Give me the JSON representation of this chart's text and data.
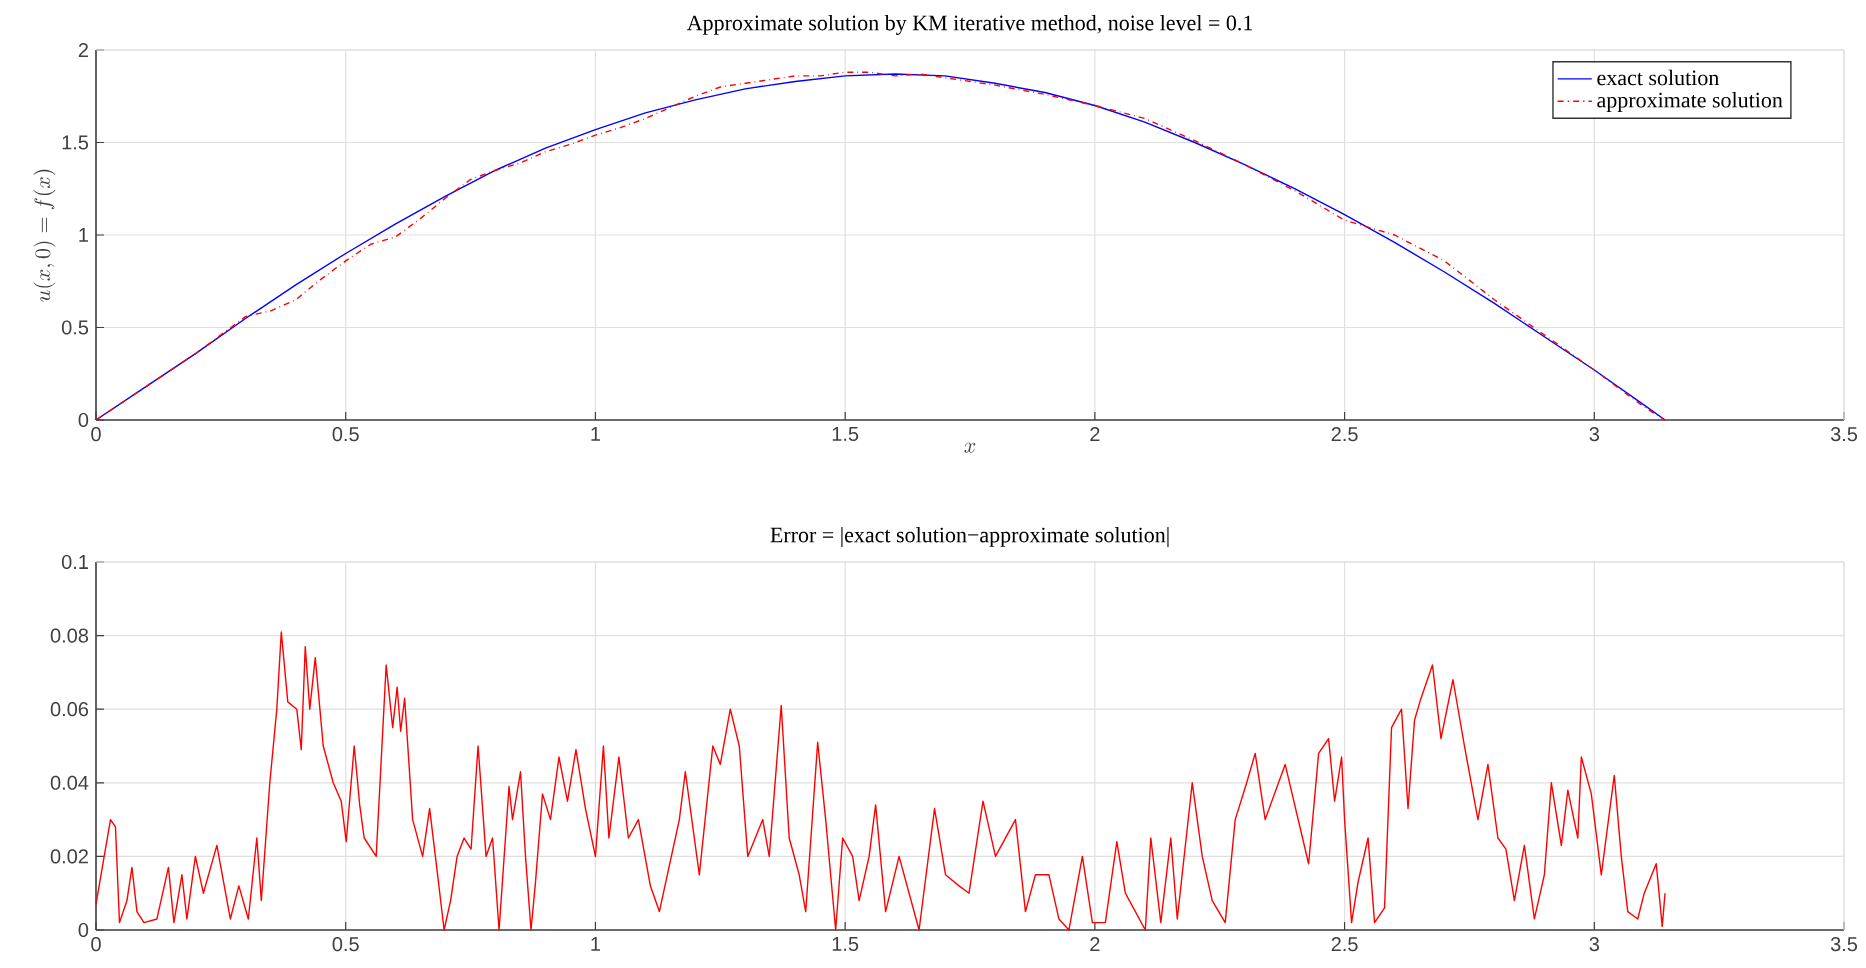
{
  "chart_data": [
    {
      "type": "line",
      "title": "Approximate solution by KM iterative method, noise level = 0.1",
      "xlabel": "x",
      "ylabel": "u(x,0) = f(x)",
      "series": [
        {
          "name": "exact solution",
          "color": "#0000ff",
          "line_style": "solid",
          "x": [
            0,
            0.1,
            0.2,
            0.3,
            0.4,
            0.5,
            0.6,
            0.7,
            0.8,
            0.9,
            1.0,
            1.1,
            1.2,
            1.3,
            1.4,
            1.5,
            1.6,
            1.7,
            1.8,
            1.9,
            2.0,
            2.1,
            2.2,
            2.3,
            2.4,
            2.5,
            2.6,
            2.7,
            2.8,
            2.9,
            3.0,
            3.1,
            3.1416
          ],
          "values": [
            0,
            0.18,
            0.36,
            0.55,
            0.73,
            0.9,
            1.06,
            1.21,
            1.35,
            1.47,
            1.57,
            1.66,
            1.73,
            1.79,
            1.83,
            1.86,
            1.87,
            1.86,
            1.82,
            1.77,
            1.7,
            1.61,
            1.5,
            1.38,
            1.25,
            1.11,
            0.96,
            0.8,
            0.63,
            0.45,
            0.27,
            0.08,
            0
          ]
        },
        {
          "name": "approximate solution",
          "color": "#ff0000",
          "line_style": "dashdot",
          "x": [
            0,
            0.1,
            0.2,
            0.3,
            0.35,
            0.4,
            0.45,
            0.5,
            0.55,
            0.6,
            0.65,
            0.7,
            0.75,
            0.8,
            0.85,
            0.9,
            0.95,
            1.0,
            1.05,
            1.1,
            1.15,
            1.2,
            1.25,
            1.3,
            1.35,
            1.4,
            1.45,
            1.5,
            1.55,
            1.6,
            1.65,
            1.7,
            1.8,
            1.9,
            2.0,
            2.1,
            2.2,
            2.3,
            2.4,
            2.5,
            2.6,
            2.7,
            2.8,
            2.9,
            3.0,
            3.1,
            3.1416
          ],
          "values": [
            0,
            0.18,
            0.36,
            0.56,
            0.59,
            0.65,
            0.76,
            0.86,
            0.95,
            0.99,
            1.09,
            1.2,
            1.3,
            1.35,
            1.39,
            1.45,
            1.49,
            1.54,
            1.58,
            1.63,
            1.69,
            1.75,
            1.8,
            1.82,
            1.84,
            1.86,
            1.86,
            1.88,
            1.88,
            1.86,
            1.87,
            1.85,
            1.81,
            1.76,
            1.7,
            1.63,
            1.51,
            1.38,
            1.24,
            1.08,
            1.0,
            0.86,
            0.65,
            0.46,
            0.27,
            0.07,
            0
          ]
        }
      ],
      "xlim": [
        0,
        3.5
      ],
      "ylim": [
        0,
        2
      ],
      "xticks": [
        0,
        0.5,
        1,
        1.5,
        2,
        2.5,
        3,
        3.5
      ],
      "yticks": [
        0,
        0.5,
        1,
        1.5,
        2
      ],
      "grid": true,
      "legend": "top right"
    },
    {
      "type": "line",
      "title": "Error = |exact solution−approximate solution|",
      "series": [
        {
          "color": "#ff0000",
          "line_style": "solid",
          "x": [
            0,
            0.029,
            0.039,
            0.047,
            0.062,
            0.072,
            0.082,
            0.096,
            0.122,
            0.145,
            0.156,
            0.172,
            0.182,
            0.199,
            0.215,
            0.242,
            0.269,
            0.286,
            0.305,
            0.322,
            0.331,
            0.348,
            0.362,
            0.371,
            0.384,
            0.402,
            0.411,
            0.419,
            0.428,
            0.439,
            0.455,
            0.475,
            0.491,
            0.501,
            0.517,
            0.528,
            0.537,
            0.561,
            0.581,
            0.594,
            0.603,
            0.61,
            0.618,
            0.634,
            0.654,
            0.668,
            0.684,
            0.697,
            0.71,
            0.723,
            0.737,
            0.751,
            0.765,
            0.781,
            0.794,
            0.807,
            0.827,
            0.834,
            0.85,
            0.86,
            0.871,
            0.88,
            0.894,
            0.91,
            0.927,
            0.944,
            0.961,
            0.98,
            1.0,
            1.016,
            1.027,
            1.047,
            1.066,
            1.086,
            1.11,
            1.128,
            1.168,
            1.18,
            1.208,
            1.235,
            1.25,
            1.27,
            1.288,
            1.305,
            1.335,
            1.348,
            1.372,
            1.388,
            1.408,
            1.421,
            1.445,
            1.461,
            1.481,
            1.495,
            1.515,
            1.528,
            1.548,
            1.561,
            1.581,
            1.608,
            1.628,
            1.648,
            1.679,
            1.701,
            1.728,
            1.748,
            1.776,
            1.801,
            1.841,
            1.861,
            1.881,
            1.908,
            1.928,
            1.948,
            1.975,
            1.995,
            2.021,
            2.044,
            2.061,
            2.101,
            2.112,
            2.132,
            2.152,
            2.165,
            2.195,
            2.215,
            2.235,
            2.261,
            2.281,
            2.304,
            2.321,
            2.341,
            2.381,
            2.428,
            2.448,
            2.468,
            2.48,
            2.494,
            2.5,
            2.514,
            2.527,
            2.547,
            2.56,
            2.58,
            2.594,
            2.614,
            2.627,
            2.64,
            2.653,
            2.676,
            2.693,
            2.717,
            2.74,
            2.767,
            2.787,
            2.807,
            2.823,
            2.84,
            2.86,
            2.88,
            2.9,
            2.914,
            2.934,
            2.947,
            2.967,
            2.974,
            2.994,
            3.014,
            3.04,
            3.054,
            3.067,
            3.087,
            3.1,
            3.124,
            3.136,
            3.1416
          ],
          "values": [
            0.007,
            0.03,
            0.028,
            0.002,
            0.008,
            0.017,
            0.005,
            0.002,
            0.003,
            0.017,
            0.002,
            0.015,
            0.003,
            0.02,
            0.01,
            0.023,
            0.003,
            0.012,
            0.003,
            0.025,
            0.008,
            0.04,
            0.06,
            0.081,
            0.062,
            0.06,
            0.049,
            0.077,
            0.06,
            0.074,
            0.05,
            0.04,
            0.035,
            0.024,
            0.05,
            0.034,
            0.025,
            0.02,
            0.072,
            0.055,
            0.066,
            0.054,
            0.063,
            0.03,
            0.02,
            0.033,
            0.015,
            0,
            0.008,
            0.02,
            0.025,
            0.022,
            0.05,
            0.02,
            0.025,
            0,
            0.039,
            0.03,
            0.043,
            0.02,
            0,
            0.013,
            0.037,
            0.03,
            0.047,
            0.035,
            0.049,
            0.033,
            0.02,
            0.05,
            0.025,
            0.047,
            0.025,
            0.03,
            0.012,
            0.005,
            0.03,
            0.043,
            0.015,
            0.05,
            0.045,
            0.06,
            0.05,
            0.02,
            0.03,
            0.02,
            0.061,
            0.025,
            0.015,
            0.005,
            0.051,
            0.03,
            0,
            0.025,
            0.02,
            0.008,
            0.02,
            0.034,
            0.005,
            0.02,
            0.01,
            0,
            0.033,
            0.015,
            0.012,
            0.01,
            0.035,
            0.02,
            0.03,
            0.005,
            0.015,
            0.015,
            0.003,
            0,
            0.02,
            0.002,
            0.002,
            0.024,
            0.01,
            0,
            0.025,
            0.002,
            0.025,
            0.003,
            0.04,
            0.02,
            0.008,
            0.002,
            0.03,
            0.04,
            0.048,
            0.03,
            0.045,
            0.018,
            0.048,
            0.052,
            0.035,
            0.047,
            0.03,
            0.002,
            0.013,
            0.025,
            0.002,
            0.006,
            0.055,
            0.06,
            0.033,
            0.057,
            0.063,
            0.072,
            0.052,
            0.068,
            0.05,
            0.03,
            0.045,
            0.025,
            0.022,
            0.008,
            0.023,
            0.003,
            0.015,
            0.04,
            0.023,
            0.038,
            0.025,
            0.047,
            0.037,
            0.015,
            0.042,
            0.02,
            0.005,
            0.003,
            0.01,
            0.018,
            0.001,
            0.01
          ]
        }
      ],
      "xlim": [
        0,
        3.5
      ],
      "ylim": [
        0,
        0.1
      ],
      "xticks": [
        0,
        0.5,
        1,
        1.5,
        2,
        2.5,
        3,
        3.5
      ],
      "yticks": [
        0,
        0.02,
        0.04,
        0.06,
        0.08,
        0.1
      ],
      "grid": true
    }
  ]
}
